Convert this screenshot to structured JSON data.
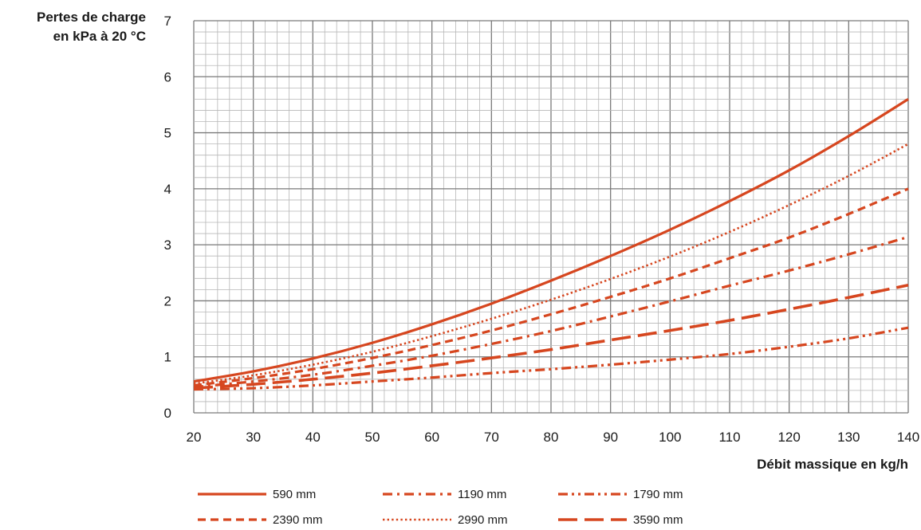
{
  "chart_data": {
    "type": "line",
    "title": "",
    "ylabel_lines": [
      "Pertes de charge",
      "en kPa à 20 °C"
    ],
    "xlabel": "Débit massique en kg/h",
    "xlim": [
      20,
      140
    ],
    "ylim": [
      0,
      7
    ],
    "x_ticks": [
      20,
      30,
      40,
      50,
      60,
      70,
      80,
      90,
      100,
      110,
      120,
      130,
      140
    ],
    "y_ticks": [
      0,
      1,
      2,
      3,
      4,
      5,
      6,
      7
    ],
    "grid": true,
    "line_color": "#d6461f",
    "legend_position": "bottom",
    "x": [
      20,
      30,
      40,
      50,
      60,
      70,
      80,
      90,
      100,
      110,
      120,
      130,
      140
    ],
    "series": [
      {
        "name": "590 mm",
        "style": "solid",
        "values": [
          0.56,
          0.74,
          0.97,
          1.25,
          1.58,
          1.95,
          2.36,
          2.8,
          3.27,
          3.78,
          4.33,
          4.94,
          5.6
        ]
      },
      {
        "name": "1190 mm",
        "style": "dash-dot",
        "values": [
          0.46,
          0.56,
          0.68,
          0.84,
          1.02,
          1.23,
          1.46,
          1.72,
          1.99,
          2.27,
          2.54,
          2.83,
          3.14
        ]
      },
      {
        "name": "1790 mm",
        "style": "dash-dot-dot",
        "values": [
          0.42,
          0.44,
          0.49,
          0.56,
          0.63,
          0.71,
          0.78,
          0.86,
          0.95,
          1.05,
          1.18,
          1.33,
          1.52
        ]
      },
      {
        "name": "2390 mm",
        "style": "dashed",
        "values": [
          0.49,
          0.62,
          0.78,
          0.98,
          1.21,
          1.47,
          1.76,
          2.07,
          2.4,
          2.76,
          3.13,
          3.55,
          4.0
        ]
      },
      {
        "name": "2990 mm",
        "style": "dotted",
        "values": [
          0.52,
          0.67,
          0.86,
          1.09,
          1.37,
          1.68,
          2.02,
          2.39,
          2.79,
          3.23,
          3.71,
          4.23,
          4.8
        ]
      },
      {
        "name": "3590 mm",
        "style": "long-dash",
        "values": [
          0.44,
          0.51,
          0.6,
          0.71,
          0.84,
          0.98,
          1.13,
          1.3,
          1.47,
          1.65,
          1.85,
          2.06,
          2.28
        ]
      }
    ]
  }
}
